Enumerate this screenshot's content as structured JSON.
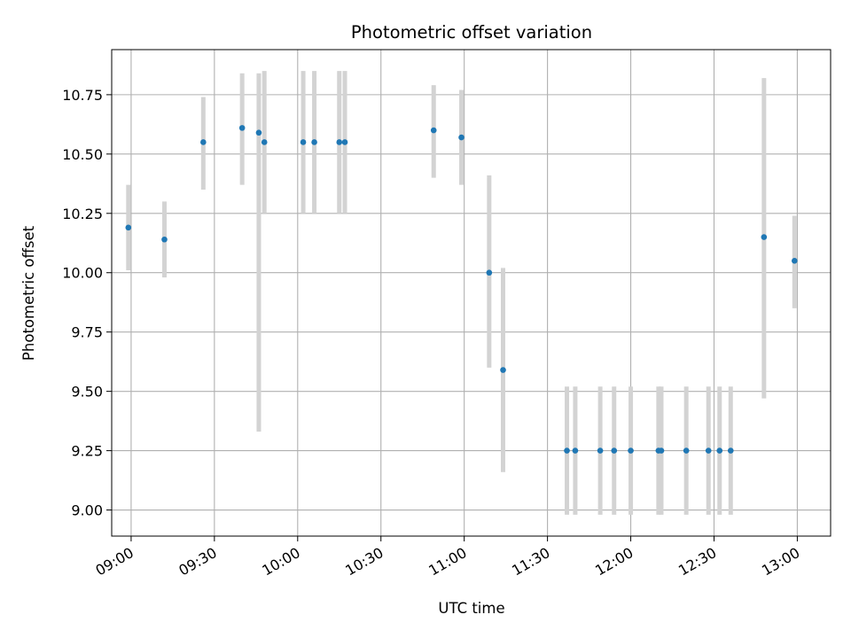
{
  "chart_data": {
    "type": "scatter",
    "title": "Photometric offset variation",
    "xlabel": "UTC time",
    "ylabel": "Photometric offset",
    "xlim": [
      "08:53",
      "13:12"
    ],
    "ylim": [
      8.89,
      10.94
    ],
    "x_ticks": [
      "09:00",
      "09:30",
      "10:00",
      "10:30",
      "11:00",
      "11:30",
      "12:00",
      "12:30",
      "13:00"
    ],
    "y_ticks": [
      9.0,
      9.25,
      9.5,
      9.75,
      10.0,
      10.25,
      10.5,
      10.75
    ],
    "grid": true,
    "point_color": "#1f77b4",
    "errorbar_color": "#d3d3d3",
    "points": [
      {
        "x": "08:59",
        "y": 10.19,
        "low": 10.01,
        "high": 10.37
      },
      {
        "x": "09:12",
        "y": 10.14,
        "low": 9.98,
        "high": 10.3
      },
      {
        "x": "09:26",
        "y": 10.55,
        "low": 10.35,
        "high": 10.74
      },
      {
        "x": "09:40",
        "y": 10.61,
        "low": 10.37,
        "high": 10.84
      },
      {
        "x": "09:46",
        "y": 10.59,
        "low": 9.33,
        "high": 10.84
      },
      {
        "x": "09:48",
        "y": 10.55,
        "low": 10.25,
        "high": 10.85
      },
      {
        "x": "10:02",
        "y": 10.55,
        "low": 10.25,
        "high": 10.85
      },
      {
        "x": "10:06",
        "y": 10.55,
        "low": 10.25,
        "high": 10.85
      },
      {
        "x": "10:15",
        "y": 10.55,
        "low": 10.25,
        "high": 10.85
      },
      {
        "x": "10:17",
        "y": 10.55,
        "low": 10.25,
        "high": 10.85
      },
      {
        "x": "10:49",
        "y": 10.6,
        "low": 10.4,
        "high": 10.79
      },
      {
        "x": "10:59",
        "y": 10.57,
        "low": 10.37,
        "high": 10.77
      },
      {
        "x": "11:09",
        "y": 10.0,
        "low": 9.6,
        "high": 10.41
      },
      {
        "x": "11:14",
        "y": 9.59,
        "low": 9.16,
        "high": 10.02
      },
      {
        "x": "11:37",
        "y": 9.25,
        "low": 8.98,
        "high": 9.52
      },
      {
        "x": "11:40",
        "y": 9.25,
        "low": 8.98,
        "high": 9.52
      },
      {
        "x": "11:49",
        "y": 9.25,
        "low": 8.98,
        "high": 9.52
      },
      {
        "x": "11:54",
        "y": 9.25,
        "low": 8.98,
        "high": 9.52
      },
      {
        "x": "12:00",
        "y": 9.25,
        "low": 8.98,
        "high": 9.52
      },
      {
        "x": "12:10",
        "y": 9.25,
        "low": 8.98,
        "high": 9.52
      },
      {
        "x": "12:11",
        "y": 9.25,
        "low": 8.98,
        "high": 9.52
      },
      {
        "x": "12:20",
        "y": 9.25,
        "low": 8.98,
        "high": 9.52
      },
      {
        "x": "12:28",
        "y": 9.25,
        "low": 8.98,
        "high": 9.52
      },
      {
        "x": "12:32",
        "y": 9.25,
        "low": 8.98,
        "high": 9.52
      },
      {
        "x": "12:36",
        "y": 9.25,
        "low": 8.98,
        "high": 9.52
      },
      {
        "x": "12:48",
        "y": 10.15,
        "low": 9.47,
        "high": 10.82
      },
      {
        "x": "12:59",
        "y": 10.05,
        "low": 9.85,
        "high": 10.24
      }
    ]
  }
}
